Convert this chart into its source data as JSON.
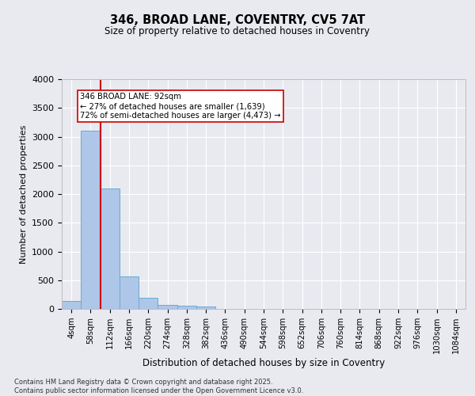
{
  "title_line1": "346, BROAD LANE, COVENTRY, CV5 7AT",
  "title_line2": "Size of property relative to detached houses in Coventry",
  "xlabel": "Distribution of detached houses by size in Coventry",
  "ylabel": "Number of detached properties",
  "bar_labels": [
    "4sqm",
    "58sqm",
    "112sqm",
    "166sqm",
    "220sqm",
    "274sqm",
    "328sqm",
    "382sqm",
    "436sqm",
    "490sqm",
    "544sqm",
    "598sqm",
    "652sqm",
    "706sqm",
    "760sqm",
    "814sqm",
    "868sqm",
    "922sqm",
    "976sqm",
    "1030sqm",
    "1084sqm"
  ],
  "bar_values": [
    140,
    3100,
    2090,
    570,
    195,
    75,
    50,
    40,
    0,
    0,
    0,
    0,
    0,
    0,
    0,
    0,
    0,
    0,
    0,
    0,
    0
  ],
  "bar_color": "#aec6e8",
  "bar_edge_color": "#6aaad4",
  "bg_color": "#e8eaf0",
  "grid_color": "#ffffff",
  "ylim": [
    0,
    4000
  ],
  "yticks": [
    0,
    500,
    1000,
    1500,
    2000,
    2500,
    3000,
    3500,
    4000
  ],
  "vline_x": 1.5,
  "vline_color": "#cc0000",
  "annotation_text": "346 BROAD LANE: 92sqm\n← 27% of detached houses are smaller (1,639)\n72% of semi-detached houses are larger (4,473) →",
  "footer_line1": "Contains HM Land Registry data © Crown copyright and database right 2025.",
  "footer_line2": "Contains public sector information licensed under the Open Government Licence v3.0."
}
